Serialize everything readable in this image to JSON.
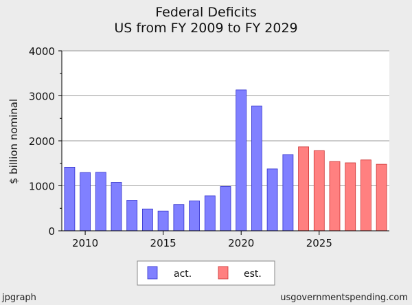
{
  "chart_data": {
    "type": "bar",
    "title": "Federal Deficits",
    "subtitle": "US from FY 2009 to FY 2029",
    "ylabel": "$ billion nominal",
    "xlabel": "",
    "ylim": [
      0,
      4000
    ],
    "yticks": [
      0,
      1000,
      2000,
      3000,
      4000
    ],
    "xticks": [
      2010,
      2015,
      2020,
      2025
    ],
    "grid": true,
    "legend_position": "bottom-center",
    "series": [
      {
        "name": "act.",
        "color": "#8080ff",
        "x": [
          2009,
          2010,
          2011,
          2012,
          2013,
          2014,
          2015,
          2016,
          2017,
          2018,
          2019,
          2020,
          2021,
          2022,
          2023
        ],
        "values": [
          1413,
          1294,
          1300,
          1077,
          680,
          485,
          439,
          585,
          665,
          779,
          984,
          3132,
          2775,
          1376,
          1695
        ]
      },
      {
        "name": "est.",
        "color": "#ff8080",
        "x": [
          2024,
          2025,
          2026,
          2027,
          2028,
          2029
        ],
        "values": [
          1865,
          1781,
          1540,
          1512,
          1575,
          1480
        ]
      }
    ]
  },
  "footer": {
    "left": "jpgraph",
    "right": "usgovernmentspending.com"
  }
}
